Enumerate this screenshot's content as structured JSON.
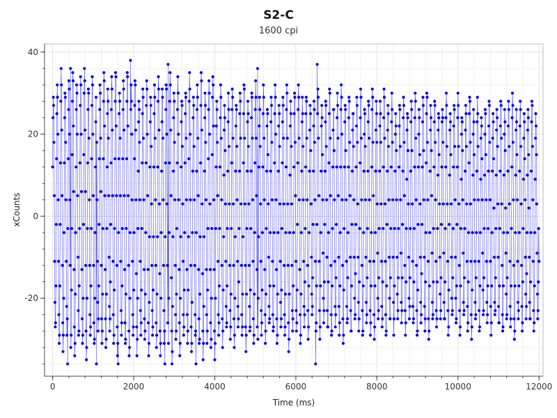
{
  "chart_data": {
    "type": "line",
    "title": "S2-C",
    "subtitle": "1600 cpi",
    "xlabel": "Time (ms)",
    "ylabel": "xCounts",
    "xlim": [
      -200,
      12100
    ],
    "ylim": [
      -39,
      42
    ],
    "xticks": [
      0,
      2000,
      4000,
      6000,
      8000,
      10000,
      12000
    ],
    "yticks": [
      -20,
      0,
      20,
      40
    ],
    "grid": true,
    "legend": "none",
    "series": [
      {
        "color": "#0000ee",
        "marker": "circle",
        "sampling_interval_ms": 8,
        "duration_ms": 12000,
        "oscillation": {
          "period_ms": 96,
          "amplitude_segments": [
            {
              "start_ms": 0,
              "end_ms": 2000,
              "max": 33,
              "min": -31
            },
            {
              "start_ms": 2000,
              "end_ms": 4000,
              "max": 32,
              "min": -32
            },
            {
              "start_ms": 4000,
              "end_ms": 6000,
              "max": 30,
              "min": -30
            },
            {
              "start_ms": 6000,
              "end_ms": 8000,
              "max": 29,
              "min": -28
            },
            {
              "start_ms": 8000,
              "end_ms": 10000,
              "max": 28,
              "min": -27
            },
            {
              "start_ms": 10000,
              "end_ms": 12000,
              "max": 27,
              "min": -27
            }
          ],
          "ends_at": -11
        },
        "notable_points": [
          {
            "x": 1920,
            "y": 38
          },
          {
            "x": 2850,
            "y": 37
          },
          {
            "x": 6530,
            "y": 37
          },
          {
            "x": 5060,
            "y": 36
          },
          {
            "x": 440,
            "y": 36
          },
          {
            "x": 370,
            "y": -36
          },
          {
            "x": 1080,
            "y": -36
          },
          {
            "x": 1620,
            "y": -36
          },
          {
            "x": 2770,
            "y": -36
          },
          {
            "x": 3540,
            "y": -36
          },
          {
            "x": 6490,
            "y": -36
          }
        ]
      }
    ]
  }
}
